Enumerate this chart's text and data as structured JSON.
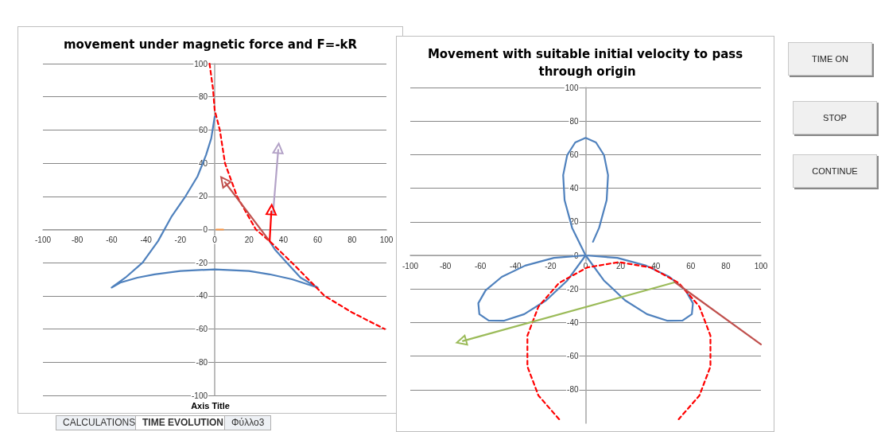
{
  "chart_data": [
    {
      "type": "line",
      "title": "movement under magnetic force and F=-kR",
      "xlabel": "Axis Title",
      "xlim": [
        -100,
        100
      ],
      "ylim": [
        -100,
        100
      ],
      "xticks": [
        -100,
        -80,
        -60,
        -40,
        -20,
        0,
        20,
        40,
        60,
        80,
        100
      ],
      "yticks": [
        -100,
        -80,
        -60,
        -40,
        -20,
        0,
        20,
        40,
        60,
        80,
        100
      ],
      "grid": "y",
      "marker": "none",
      "series": [
        {
          "color": "#4f81bd",
          "x": [
            0,
            -2,
            -5,
            -10,
            -17,
            -25,
            -33,
            -42,
            -52,
            -60,
            -55,
            -45,
            -35,
            -20,
            0,
            20,
            32,
            45,
            60,
            50,
            42,
            35,
            32
          ],
          "values": [
            68,
            55,
            45,
            32,
            20,
            8,
            -7,
            -20,
            -29,
            -35,
            -32,
            -29,
            -27,
            -25,
            -24,
            -25,
            -27,
            -30,
            -35,
            -29,
            -20,
            -12,
            -7
          ]
        },
        {
          "color": "#ff0000",
          "line_style": "dashed",
          "x": [
            -3,
            -1,
            0,
            3,
            6,
            13,
            24,
            32,
            45,
            64,
            80,
            99
          ],
          "values": [
            100,
            85,
            72,
            60,
            40,
            20,
            0,
            -7,
            -20,
            -40,
            -50,
            -60
          ]
        },
        {
          "color": "#c0504d",
          "marker": "triangle",
          "x": [
            32,
            6
          ],
          "values": [
            -7,
            28.5
          ]
        },
        {
          "color": "#b3a2c7",
          "marker": "triangle",
          "x": [
            34,
            37
          ],
          "values": [
            10,
            48
          ]
        },
        {
          "color": "#ff0000",
          "marker": "triangle",
          "x": [
            32,
            33
          ],
          "values": [
            -7,
            11
          ]
        },
        {
          "color": "#f79646",
          "x": [
            1,
            5
          ],
          "values": [
            0,
            0
          ]
        }
      ]
    },
    {
      "type": "line",
      "title": "Movement with suitable initial velocity to pass through origin",
      "xlim": [
        -100,
        100
      ],
      "ylim": [
        -100,
        100
      ],
      "xticks": [
        -100,
        -80,
        -60,
        -40,
        -20,
        0,
        20,
        40,
        60,
        80,
        100
      ],
      "yticks": [
        -80,
        -60,
        -40,
        -20,
        0,
        20,
        40,
        60,
        80,
        100
      ],
      "grid": "y",
      "marker": "none",
      "series": [
        {
          "color": "#4f81bd",
          "x": [
            4.2,
            7.7,
            12.0,
            12.8,
            10.5,
            5.9,
            0,
            -5.9,
            -10.5,
            -12.8,
            -12.0,
            -7.7,
            0,
            10.4,
            22.5,
            35.0,
            46.4,
            55.3,
            60.6,
            61.2,
            57.0,
            47.8,
            34.5,
            18.1,
            0,
            -18.1,
            -34.5,
            -47.8,
            -57.0,
            -61.2,
            -60.6,
            -55.3,
            -46.4,
            -35.0,
            -22.5,
            -10.4,
            0
          ],
          "values": [
            8.1,
            16.4,
            32.9,
            47.8,
            59.7,
            67.3,
            70,
            67.3,
            59.7,
            47.8,
            32.9,
            16.4,
            0,
            -14.9,
            -26.8,
            -35.0,
            -38.9,
            -38.8,
            -35,
            -28.5,
            -20.8,
            -12.8,
            -6.1,
            -1.5,
            0,
            -1.5,
            -6.1,
            -12.8,
            -20.8,
            -28.5,
            -35,
            -38.8,
            -38.9,
            -35.0,
            -26.8,
            -14.9,
            0
          ]
        },
        {
          "color": "#ff0000",
          "line_style": "dashed",
          "x": [
            -15.1,
            -26.9,
            -33.2,
            -33.2,
            -26.9,
            -15.1,
            0.9,
            19,
            37.1,
            53.1,
            64.9,
            71.2,
            71.2,
            64.9,
            53.1
          ],
          "values": [
            -97.6,
            -83.5,
            -66.2,
            -47.8,
            -30.5,
            -16.4,
            -7.2,
            -4,
            -7.2,
            -16.4,
            -30.5,
            -47.8,
            -66.2,
            -83.5,
            -97.6
          ]
        },
        {
          "color": "#9bbb59",
          "marker": "triangle",
          "x": [
            51,
            -70
          ],
          "values": [
            -16,
            -51
          ]
        },
        {
          "color": "#c0504d",
          "x": [
            51,
            100
          ],
          "values": [
            -16,
            -53
          ]
        }
      ]
    },
    {
      "type": "other",
      "annotations": [
        "TIME  ON",
        "STOP",
        "CONTINUE",
        "CALCULATIONS",
        "TIME EVOLUTION",
        "Φύλλο3"
      ]
    }
  ]
}
